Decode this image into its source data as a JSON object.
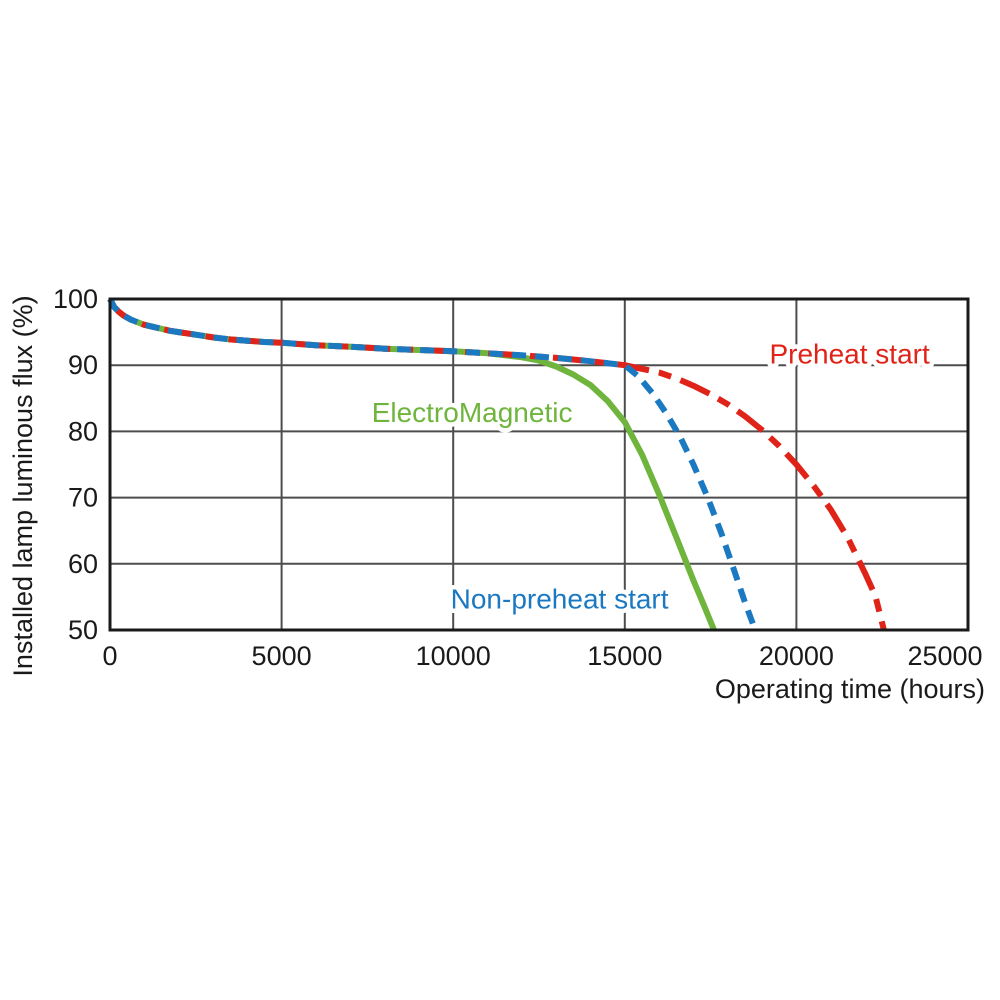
{
  "page": {
    "background": "#ffffff",
    "frame_color": "#1a1a1a",
    "grid_color": "#4d4d4d",
    "text_color": "#1a1a1a"
  },
  "chart_data": {
    "type": "line",
    "title": "",
    "xlabel": "Operating time (hours)",
    "ylabel": "Installed lamp luminous flux (%)",
    "xlim": [
      0,
      25000
    ],
    "ylim": [
      50,
      100
    ],
    "xticks": {
      "values": [
        0,
        5000,
        10000,
        15000,
        20000,
        25000
      ],
      "labels": [
        "0",
        "5000",
        "10000",
        "15000",
        "20000",
        "25000"
      ]
    },
    "yticks": {
      "values": [
        50,
        60,
        70,
        80,
        90,
        100
      ],
      "labels": [
        "50",
        "60",
        "70",
        "80",
        "90",
        "100"
      ]
    },
    "grid": true,
    "legend_position": "inline-annotations",
    "series": [
      {
        "name": "ElectroMagnetic",
        "color": "#6fb43c",
        "style": "solid",
        "label_pos": {
          "x": 10550,
          "y": 82.8
        },
        "points": [
          [
            0,
            100
          ],
          [
            120,
            98.8
          ],
          [
            250,
            98.1
          ],
          [
            400,
            97.5
          ],
          [
            600,
            96.9
          ],
          [
            800,
            96.5
          ],
          [
            1000,
            96.1
          ],
          [
            1250,
            95.8
          ],
          [
            1500,
            95.5
          ],
          [
            1750,
            95.2
          ],
          [
            2000,
            95.0
          ],
          [
            2500,
            94.6
          ],
          [
            3000,
            94.2
          ],
          [
            3500,
            93.9
          ],
          [
            4000,
            93.7
          ],
          [
            4500,
            93.5
          ],
          [
            5000,
            93.4
          ],
          [
            6000,
            93.0
          ],
          [
            7000,
            92.8
          ],
          [
            8000,
            92.5
          ],
          [
            9000,
            92.3
          ],
          [
            10000,
            92.1
          ],
          [
            11000,
            91.8
          ],
          [
            11500,
            91.5
          ],
          [
            12000,
            91.2
          ],
          [
            12500,
            90.7
          ],
          [
            13000,
            89.8
          ],
          [
            13500,
            88.6
          ],
          [
            14000,
            87.0
          ],
          [
            14500,
            84.6
          ],
          [
            15000,
            81.4
          ],
          [
            15500,
            76.5
          ],
          [
            16000,
            70.5
          ],
          [
            16500,
            64.0
          ],
          [
            17000,
            57.5
          ],
          [
            17300,
            53.8
          ],
          [
            17600,
            50.0
          ]
        ]
      },
      {
        "name": "Preheat start",
        "color": "#e02318",
        "style": "dash-dot",
        "label_pos": {
          "x": 21550,
          "y": 91.6
        },
        "points": [
          [
            0,
            100
          ],
          [
            120,
            98.8
          ],
          [
            250,
            98.1
          ],
          [
            400,
            97.5
          ],
          [
            600,
            96.9
          ],
          [
            800,
            96.5
          ],
          [
            1000,
            96.1
          ],
          [
            1250,
            95.8
          ],
          [
            1500,
            95.5
          ],
          [
            1750,
            95.2
          ],
          [
            2000,
            95.0
          ],
          [
            2500,
            94.6
          ],
          [
            3000,
            94.2
          ],
          [
            3500,
            93.9
          ],
          [
            4000,
            93.7
          ],
          [
            4500,
            93.5
          ],
          [
            5000,
            93.4
          ],
          [
            6000,
            93.0
          ],
          [
            7000,
            92.8
          ],
          [
            8000,
            92.5
          ],
          [
            9000,
            92.3
          ],
          [
            10000,
            92.1
          ],
          [
            11000,
            91.8
          ],
          [
            12000,
            91.5
          ],
          [
            13000,
            91.1
          ],
          [
            14000,
            90.6
          ],
          [
            15000,
            90.0
          ],
          [
            16000,
            88.9
          ],
          [
            16500,
            88.0
          ],
          [
            17000,
            86.9
          ],
          [
            17500,
            85.6
          ],
          [
            18000,
            84.1
          ],
          [
            18500,
            82.3
          ],
          [
            19000,
            80.2
          ],
          [
            19500,
            77.8
          ],
          [
            20000,
            75.0
          ],
          [
            20500,
            71.8
          ],
          [
            21000,
            68.2
          ],
          [
            21500,
            63.9
          ],
          [
            22000,
            58.6
          ],
          [
            22300,
            55.2
          ],
          [
            22550,
            50.0
          ]
        ]
      },
      {
        "name": "Non-preheat start",
        "color": "#1b79c2",
        "style": "dashed",
        "label_pos": {
          "x": 13100,
          "y": 54.6
        },
        "points": [
          [
            0,
            100
          ],
          [
            120,
            98.8
          ],
          [
            250,
            98.1
          ],
          [
            400,
            97.5
          ],
          [
            600,
            96.9
          ],
          [
            800,
            96.5
          ],
          [
            1000,
            96.1
          ],
          [
            1250,
            95.8
          ],
          [
            1500,
            95.5
          ],
          [
            1750,
            95.2
          ],
          [
            2000,
            95.0
          ],
          [
            2500,
            94.6
          ],
          [
            3000,
            94.2
          ],
          [
            3500,
            93.9
          ],
          [
            4000,
            93.7
          ],
          [
            4500,
            93.5
          ],
          [
            5000,
            93.4
          ],
          [
            6000,
            93.0
          ],
          [
            7000,
            92.8
          ],
          [
            8000,
            92.5
          ],
          [
            9000,
            92.3
          ],
          [
            10000,
            92.1
          ],
          [
            11000,
            91.8
          ],
          [
            12000,
            91.5
          ],
          [
            13000,
            91.1
          ],
          [
            14000,
            90.6
          ],
          [
            15000,
            90.0
          ],
          [
            15400,
            88.3
          ],
          [
            15800,
            85.8
          ],
          [
            16200,
            82.8
          ],
          [
            16600,
            79.3
          ],
          [
            17000,
            75.0
          ],
          [
            17400,
            70.2
          ],
          [
            17800,
            64.8
          ],
          [
            18200,
            58.8
          ],
          [
            18500,
            54.2
          ],
          [
            18800,
            50.0
          ]
        ]
      }
    ]
  }
}
